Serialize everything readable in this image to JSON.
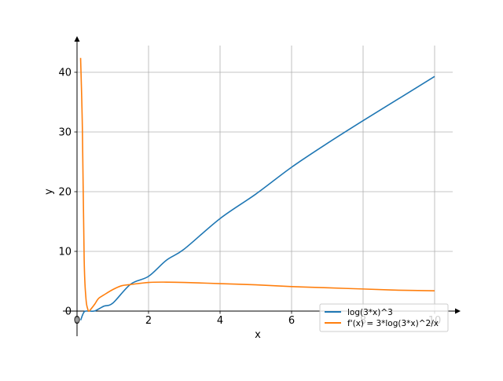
{
  "chart_data": {
    "type": "line",
    "title": "",
    "xlabel": "x",
    "ylabel": "y",
    "xlim": [
      -0.05,
      10.7
    ],
    "ylim": [
      -4.2,
      45
    ],
    "xticks": [
      0,
      2,
      4,
      6,
      8,
      10
    ],
    "yticks": [
      0,
      10,
      20,
      30,
      40
    ],
    "grid": true,
    "legend_position": "bottom-right",
    "colors": {
      "series1": "#1f77b4",
      "series2": "#ff7f0e",
      "grid": "#b0b0b0",
      "axes": "#000000"
    },
    "series": [
      {
        "name": "log(3*x)^3",
        "x": [
          0.1,
          0.2,
          0.333,
          0.5,
          0.75,
          1,
          1.5,
          2,
          2.5,
          3,
          4,
          5,
          6,
          7,
          8,
          9,
          10
        ],
        "y": [
          -1.54,
          -0.13,
          0.0,
          0.03,
          0.82,
          1.33,
          4.51,
          5.82,
          8.52,
          10.4,
          15.5,
          19.6,
          24.1,
          28.1,
          31.9,
          35.6,
          39.3
        ]
      },
      {
        "name": "f'(x) = 3*log(3*x)^2/x",
        "x": [
          0.1,
          0.15,
          0.2,
          0.25,
          0.3,
          0.333,
          0.4,
          0.5,
          0.6,
          0.75,
          1,
          1.25,
          1.5,
          2,
          2.5,
          3,
          4,
          5,
          6,
          7,
          8,
          9,
          10
        ],
        "y": [
          42.4,
          30.5,
          8.6,
          2.1,
          0.33,
          0.0,
          0.42,
          1.2,
          2.1,
          2.7,
          3.6,
          4.25,
          4.45,
          4.8,
          4.85,
          4.8,
          4.6,
          4.4,
          4.1,
          3.9,
          3.7,
          3.5,
          3.4
        ]
      }
    ]
  }
}
